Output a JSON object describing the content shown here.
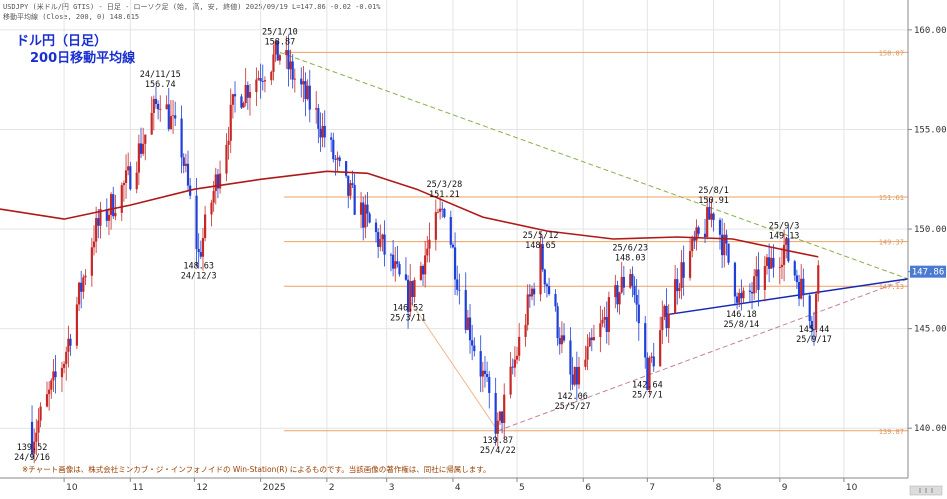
{
  "header": {
    "line1": "USDJPY (米ドル/円 GTIS) - 日足 - ローソク足 (始, 高, 安, 終値)  2025/09/19 L=147.86 -0.02 -0.01%",
    "line2": "移動平均線 (Close, 200, 0) 148.615"
  },
  "footer_note": "※チャート画像は、株式会社ミンカブ・ジ・インフォノイドの Win-Station(R) によるものです。当該画像の著作権は、同社に帰属します。",
  "chart_data": {
    "type": "candlestick",
    "title": "ドル円（日足）",
    "subtitle": "200日移動平均線",
    "price_axis": {
      "ylim": [
        137.5,
        161.5
      ],
      "ticks": [
        140,
        145,
        150,
        155,
        160
      ],
      "tick_labels": [
        "140.00",
        "145.00",
        "150.00",
        "155.00",
        "160.00"
      ],
      "position": "right"
    },
    "time_axis": {
      "start": "2024-09-01",
      "end": "2025-10-31",
      "ticks": [
        {
          "date": "2024-10-01",
          "label": "10"
        },
        {
          "date": "2024-11-01",
          "label": "11"
        },
        {
          "date": "2024-12-01",
          "label": "12"
        },
        {
          "date": "2025-01-01",
          "label": "2025"
        },
        {
          "date": "2025-02-01",
          "label": "2"
        },
        {
          "date": "2025-03-01",
          "label": "3"
        },
        {
          "date": "2025-04-01",
          "label": "4"
        },
        {
          "date": "2025-05-01",
          "label": "5"
        },
        {
          "date": "2025-06-01",
          "label": "6"
        },
        {
          "date": "2025-07-01",
          "label": "7"
        },
        {
          "date": "2025-08-01",
          "label": "8"
        },
        {
          "date": "2025-09-01",
          "label": "9"
        },
        {
          "date": "2025-10-01",
          "label": "10"
        }
      ]
    },
    "last_price": {
      "value": 147.86,
      "label": "147.86"
    },
    "moving_average": {
      "name": "200日移動平均線",
      "points": [
        {
          "date": "2024-09-01",
          "value": 151.0
        },
        {
          "date": "2024-10-01",
          "value": 150.5
        },
        {
          "date": "2024-11-01",
          "value": 151.2
        },
        {
          "date": "2024-12-01",
          "value": 152.0
        },
        {
          "date": "2025-01-01",
          "value": 152.5
        },
        {
          "date": "2025-02-01",
          "value": 152.9
        },
        {
          "date": "2025-02-20",
          "value": 152.8
        },
        {
          "date": "2025-03-15",
          "value": 152.0
        },
        {
          "date": "2025-04-15",
          "value": 150.6
        },
        {
          "date": "2025-05-15",
          "value": 149.9
        },
        {
          "date": "2025-06-15",
          "value": 149.5
        },
        {
          "date": "2025-07-15",
          "value": 149.6
        },
        {
          "date": "2025-08-10",
          "value": 149.5
        },
        {
          "date": "2025-09-01",
          "value": 149.0
        },
        {
          "date": "2025-09-19",
          "value": 148.6
        }
      ]
    },
    "candle_anchors": [
      {
        "date": "2024-09-16",
        "value": 139.52
      },
      {
        "date": "2024-10-01",
        "value": 143.5
      },
      {
        "date": "2024-10-15",
        "value": 149.8
      },
      {
        "date": "2024-10-31",
        "value": 152.5
      },
      {
        "date": "2024-11-15",
        "value": 156.74
      },
      {
        "date": "2024-11-25",
        "value": 154.0
      },
      {
        "date": "2024-12-03",
        "value": 148.63
      },
      {
        "date": "2024-12-20",
        "value": 156.5
      },
      {
        "date": "2025-01-10",
        "value": 158.87
      },
      {
        "date": "2025-01-28",
        "value": 155.5
      },
      {
        "date": "2025-02-10",
        "value": 152.0
      },
      {
        "date": "2025-02-25",
        "value": 149.5
      },
      {
        "date": "2025-03-11",
        "value": 146.52
      },
      {
        "date": "2025-03-28",
        "value": 151.21
      },
      {
        "date": "2025-04-05",
        "value": 146.5
      },
      {
        "date": "2025-04-22",
        "value": 139.87
      },
      {
        "date": "2025-05-12",
        "value": 148.65
      },
      {
        "date": "2025-05-27",
        "value": 142.06
      },
      {
        "date": "2025-06-23",
        "value": 148.03
      },
      {
        "date": "2025-07-01",
        "value": 142.64
      },
      {
        "date": "2025-07-15",
        "value": 147.5
      },
      {
        "date": "2025-08-01",
        "value": 150.91
      },
      {
        "date": "2025-08-14",
        "value": 146.18
      },
      {
        "date": "2025-09-03",
        "value": 149.13
      },
      {
        "date": "2025-09-17",
        "value": 145.44
      },
      {
        "date": "2025-09-19",
        "value": 147.86
      }
    ],
    "horizontal_levels": [
      {
        "value": 158.87,
        "label": "158.87"
      },
      {
        "value": 151.61,
        "label": "151.61"
      },
      {
        "value": 149.37,
        "label": "149.37"
      },
      {
        "value": 147.13,
        "label": "147.13"
      },
      {
        "value": 139.87,
        "label": "139.87"
      }
    ],
    "trendlines": [
      {
        "name": "resistance",
        "color": "#8ab04a",
        "dashed": true,
        "from": {
          "date": "2025-01-10",
          "value": 158.87
        },
        "to": {
          "date": "2025-10-31",
          "value": 147.5
        }
      },
      {
        "name": "support",
        "color": "#c8809a",
        "dashed": true,
        "from": {
          "date": "2025-04-22",
          "value": 139.87
        },
        "to": {
          "date": "2025-10-31",
          "value": 147.5
        }
      },
      {
        "name": "support-short",
        "color": "#1428b8",
        "dashed": false,
        "from": {
          "date": "2025-07-10",
          "value": 145.7
        },
        "to": {
          "date": "2025-10-31",
          "value": 147.5
        }
      },
      {
        "name": "swing",
        "color": "#f0b890",
        "dashed": false,
        "from": {
          "date": "2025-03-11",
          "value": 146.52
        },
        "to": {
          "date": "2025-04-22",
          "value": 139.87
        }
      }
    ],
    "annotations": [
      {
        "date": "2024-09-16",
        "value": 139.52,
        "date_label": "24/9/16",
        "price_label": "139.52",
        "pos": "below",
        "order": "price-first"
      },
      {
        "date": "2024-11-15",
        "value": 156.74,
        "date_label": "24/11/15",
        "price_label": "156.74",
        "pos": "above",
        "order": "date-first"
      },
      {
        "date": "2024-12-03",
        "value": 148.63,
        "date_label": "24/12/3",
        "price_label": "148.63",
        "pos": "below",
        "order": "price-first"
      },
      {
        "date": "2025-01-10",
        "value": 158.87,
        "date_label": "25/1/10",
        "price_label": "158.87",
        "pos": "above",
        "order": "date-first"
      },
      {
        "date": "2025-03-11",
        "value": 146.52,
        "date_label": "25/3/11",
        "price_label": "146.52",
        "pos": "below",
        "order": "price-first"
      },
      {
        "date": "2025-03-28",
        "value": 151.21,
        "date_label": "25/3/28",
        "price_label": "151.21",
        "pos": "above",
        "order": "date-first"
      },
      {
        "date": "2025-04-22",
        "value": 139.87,
        "date_label": "25/4/22",
        "price_label": "139.87",
        "pos": "below",
        "order": "price-first"
      },
      {
        "date": "2025-05-12",
        "value": 148.65,
        "date_label": "25/5/12",
        "price_label": "148.65",
        "pos": "above",
        "order": "date-first"
      },
      {
        "date": "2025-05-27",
        "value": 142.06,
        "date_label": "25/5/27",
        "price_label": "142.06",
        "pos": "below",
        "order": "price-first"
      },
      {
        "date": "2025-06-23",
        "value": 148.03,
        "date_label": "25/6/23",
        "price_label": "148.03",
        "pos": "above",
        "order": "date-first"
      },
      {
        "date": "2025-07-01",
        "value": 142.64,
        "date_label": "25/7/1",
        "price_label": "142.64",
        "pos": "below",
        "order": "price-first"
      },
      {
        "date": "2025-08-01",
        "value": 150.91,
        "date_label": "25/8/1",
        "price_label": "150.91",
        "pos": "above",
        "order": "date-first"
      },
      {
        "date": "2025-08-14",
        "value": 146.18,
        "date_label": "25/8/14",
        "price_label": "146.18",
        "pos": "below",
        "order": "price-first"
      },
      {
        "date": "2025-09-03",
        "value": 149.13,
        "date_label": "25/9/3",
        "price_label": "149.13",
        "pos": "above",
        "order": "date-first"
      },
      {
        "date": "2025-09-17",
        "value": 145.44,
        "date_label": "25/9/17",
        "price_label": "145.44",
        "pos": "below",
        "order": "price-first"
      }
    ],
    "colors": {
      "up": "#c62828",
      "down": "#1e3fd8",
      "ma": "#b01818",
      "level": "#f0a060",
      "grid": "#e4e4e4",
      "last_price_bg": "#4a7bd0"
    },
    "grid": true
  }
}
